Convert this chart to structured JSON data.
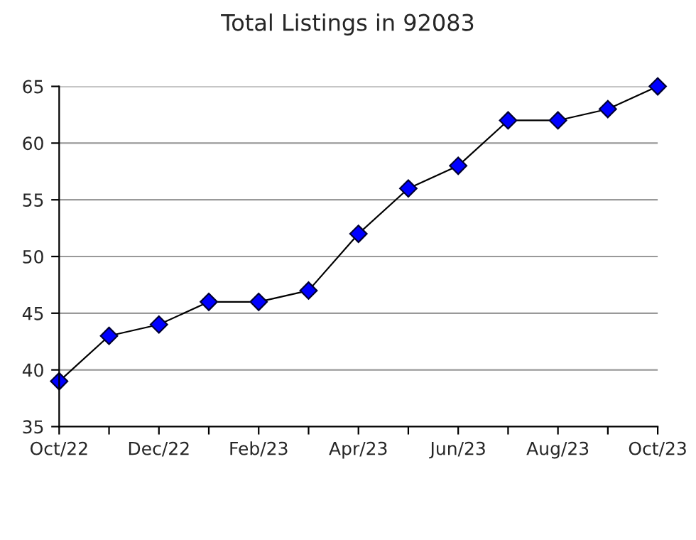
{
  "chart_data": {
    "type": "line",
    "title": "Total Listings in 92083",
    "categories": [
      "Oct/22",
      null,
      "Dec/22",
      null,
      "Feb/23",
      null,
      "Apr/23",
      null,
      "Jun/23",
      null,
      "Aug/23",
      null,
      "Oct/23"
    ],
    "series": [
      {
        "color": "#0000ff",
        "values": [
          39,
          43,
          44,
          46,
          46,
          47,
          52,
          56,
          58,
          62,
          62,
          63,
          65
        ]
      }
    ],
    "ylim": [
      35,
      65
    ],
    "yticks": [
      35,
      40,
      45,
      50,
      55,
      60,
      65
    ],
    "grid": "y",
    "marker": "diamond",
    "line_style": "solid"
  }
}
